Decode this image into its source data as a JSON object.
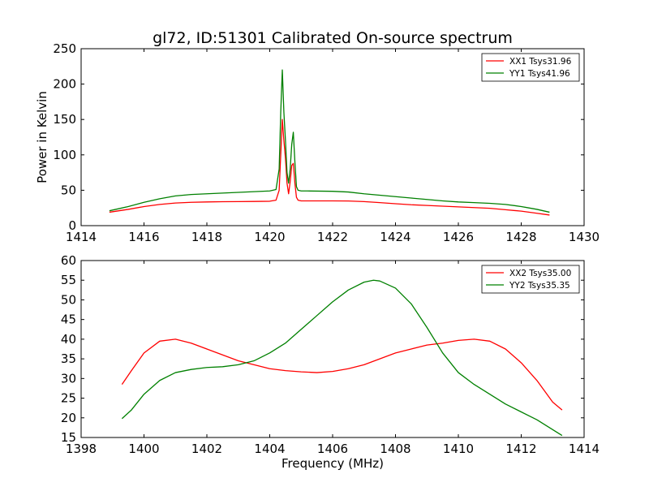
{
  "title": "gl72, ID:51301 Calibrated On-source spectrum",
  "colors": {
    "series1": "#ff0000",
    "series2": "#008000",
    "axes": "#000000",
    "background": "#ffffff"
  },
  "chart_data": [
    {
      "type": "line",
      "title": "gl72, ID:51301 Calibrated On-source spectrum",
      "ylabel": "Power in Kelvin",
      "xlabel": "",
      "xlim": [
        1414,
        1430
      ],
      "ylim": [
        0,
        250
      ],
      "xticks": [
        1414,
        1416,
        1418,
        1420,
        1422,
        1424,
        1426,
        1428,
        1430
      ],
      "yticks": [
        0,
        50,
        100,
        150,
        200,
        250
      ],
      "grid": false,
      "legend": "top-right",
      "series": [
        {
          "name": "XX1 Tsys31.96",
          "color": "#ff0000",
          "x": [
            1414.9,
            1415.5,
            1416.0,
            1416.5,
            1417.0,
            1417.5,
            1418.0,
            1418.5,
            1419.0,
            1419.5,
            1420.0,
            1420.2,
            1420.3,
            1420.35,
            1420.4,
            1420.45,
            1420.5,
            1420.55,
            1420.6,
            1420.65,
            1420.7,
            1420.75,
            1420.8,
            1420.85,
            1420.9,
            1421.0,
            1421.2,
            1422.0,
            1422.5,
            1423.0,
            1423.5,
            1424.0,
            1424.5,
            1425.0,
            1425.5,
            1426.0,
            1426.5,
            1427.0,
            1427.5,
            1428.0,
            1428.5,
            1428.9
          ],
          "y": [
            19,
            23,
            27,
            30,
            32,
            33,
            33.5,
            33.8,
            34,
            34.2,
            34.5,
            36,
            50,
            100,
            150,
            120,
            95,
            60,
            45,
            62,
            85,
            88,
            60,
            40,
            36,
            35,
            35,
            35,
            34.8,
            34,
            32.5,
            31,
            29.5,
            28.5,
            27.5,
            26.5,
            25.5,
            24.5,
            22.5,
            20.5,
            17.5,
            15
          ]
        },
        {
          "name": "YY1 Tsys41.96",
          "color": "#008000",
          "x": [
            1414.9,
            1415.5,
            1416.0,
            1416.5,
            1417.0,
            1417.5,
            1418.0,
            1418.5,
            1419.0,
            1419.5,
            1420.0,
            1420.2,
            1420.3,
            1420.35,
            1420.4,
            1420.45,
            1420.5,
            1420.55,
            1420.6,
            1420.65,
            1420.7,
            1420.75,
            1420.8,
            1420.85,
            1420.9,
            1421.0,
            1421.2,
            1422.0,
            1422.5,
            1423.0,
            1423.5,
            1424.0,
            1424.5,
            1425.0,
            1425.5,
            1426.0,
            1426.5,
            1427.0,
            1427.5,
            1428.0,
            1428.5,
            1428.9
          ],
          "y": [
            21,
            27,
            33,
            38,
            42,
            44,
            45,
            46,
            47,
            48,
            49,
            51,
            80,
            160,
            220,
            160,
            120,
            75,
            60,
            80,
            115,
            132,
            90,
            55,
            50,
            49,
            49,
            48.5,
            47.5,
            45,
            43,
            41,
            39,
            37,
            35,
            33.5,
            32.5,
            31.5,
            30,
            27,
            23,
            19
          ]
        }
      ]
    },
    {
      "type": "line",
      "title": "",
      "xlabel": "Frequency (MHz)",
      "ylabel": "",
      "xlim": [
        1398,
        1414
      ],
      "ylim": [
        15,
        60
      ],
      "xticks": [
        1398,
        1400,
        1402,
        1404,
        1406,
        1408,
        1410,
        1412,
        1414
      ],
      "yticks": [
        15,
        20,
        25,
        30,
        35,
        40,
        45,
        50,
        55,
        60
      ],
      "grid": false,
      "legend": "top-right",
      "series": [
        {
          "name": "XX2 Tsys35.00",
          "color": "#ff0000",
          "x": [
            1399.3,
            1399.6,
            1400.0,
            1400.5,
            1401.0,
            1401.5,
            1402.0,
            1402.5,
            1403.0,
            1403.5,
            1404.0,
            1404.5,
            1405.0,
            1405.5,
            1406.0,
            1406.5,
            1407.0,
            1407.5,
            1408.0,
            1408.5,
            1409.0,
            1409.5,
            1410.0,
            1410.5,
            1411.0,
            1411.5,
            1412.0,
            1412.5,
            1413.0,
            1413.3
          ],
          "y": [
            28.5,
            32,
            36.5,
            39.5,
            40,
            39,
            37.5,
            36,
            34.5,
            33.5,
            32.5,
            32,
            31.7,
            31.5,
            31.8,
            32.5,
            33.5,
            35,
            36.5,
            37.5,
            38.5,
            39,
            39.7,
            40,
            39.5,
            37.5,
            34,
            29.5,
            24,
            22
          ]
        },
        {
          "name": "YY2 Tsys35.35",
          "color": "#008000",
          "x": [
            1399.3,
            1399.6,
            1400.0,
            1400.5,
            1401.0,
            1401.5,
            1402.0,
            1402.5,
            1403.0,
            1403.5,
            1404.0,
            1404.5,
            1405.0,
            1405.5,
            1406.0,
            1406.5,
            1407.0,
            1407.3,
            1407.5,
            1408.0,
            1408.5,
            1409.0,
            1409.5,
            1410.0,
            1410.5,
            1411.0,
            1411.5,
            1412.0,
            1412.5,
            1413.0,
            1413.3
          ],
          "y": [
            19.8,
            22,
            26,
            29.5,
            31.5,
            32.3,
            32.8,
            33,
            33.5,
            34.5,
            36.5,
            39,
            42.5,
            46,
            49.5,
            52.5,
            54.5,
            55,
            54.8,
            53,
            49,
            43,
            36.5,
            31.5,
            28.5,
            26,
            23.5,
            21.5,
            19.5,
            17,
            15.5
          ]
        }
      ]
    }
  ]
}
